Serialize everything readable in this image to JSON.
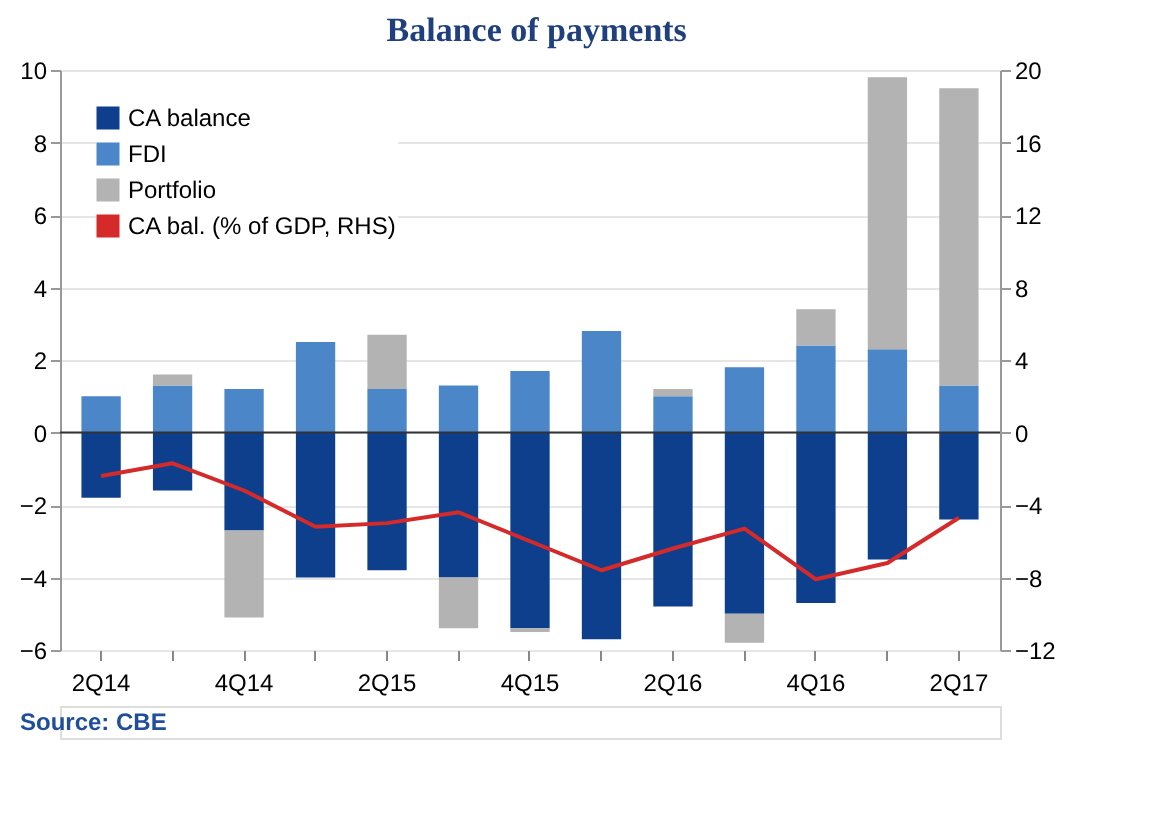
{
  "chart_data": {
    "type": "bar",
    "title": "Balance of payments",
    "stacked": true,
    "categories": [
      "2Q14",
      null,
      "4Q14",
      null,
      "2Q15",
      null,
      "4Q15",
      null,
      "2Q16",
      null,
      "4Q16",
      null,
      "2Q17"
    ],
    "series": [
      {
        "name": "CA balance",
        "color": "#0d3f8c",
        "values": [
          -1.8,
          -1.6,
          -2.7,
          -4.0,
          -3.8,
          -4.0,
          -5.4,
          -5.7,
          -4.8,
          -5.0,
          -4.7,
          -3.5,
          -2.4
        ]
      },
      {
        "name": "FDI",
        "color": "#4a86c8",
        "values": [
          1.0,
          1.3,
          1.2,
          2.5,
          1.2,
          1.3,
          1.7,
          2.8,
          1.0,
          1.8,
          2.4,
          2.3,
          1.3
        ]
      },
      {
        "name": "Portfolio",
        "color": "#b3b3b3",
        "values": [
          0,
          0.3,
          -2.4,
          0,
          1.5,
          -1.4,
          -0.1,
          0,
          0.2,
          -0.8,
          1.0,
          7.5,
          8.2
        ]
      },
      {
        "name": "CA bal. (% of GDP, RHS)",
        "color": "#d42a2a",
        "type": "line",
        "axis": "y2",
        "values": [
          -2.4,
          -1.7,
          -3.2,
          -5.2,
          -5.0,
          -4.4,
          -6.0,
          -7.6,
          -6.4,
          -5.3,
          -8.1,
          -7.2,
          -4.7
        ]
      }
    ],
    "ylim": [
      -6,
      10
    ],
    "yticks": [
      -6,
      -4,
      -2,
      0,
      2,
      4,
      6,
      8,
      10
    ],
    "y2lim": [
      -12,
      20
    ],
    "y2ticks": [
      -12,
      -8,
      -4,
      0,
      4,
      8,
      12,
      16,
      20
    ],
    "grid": "y",
    "legend": "top left",
    "annotations": [
      "Source: CBE"
    ]
  }
}
